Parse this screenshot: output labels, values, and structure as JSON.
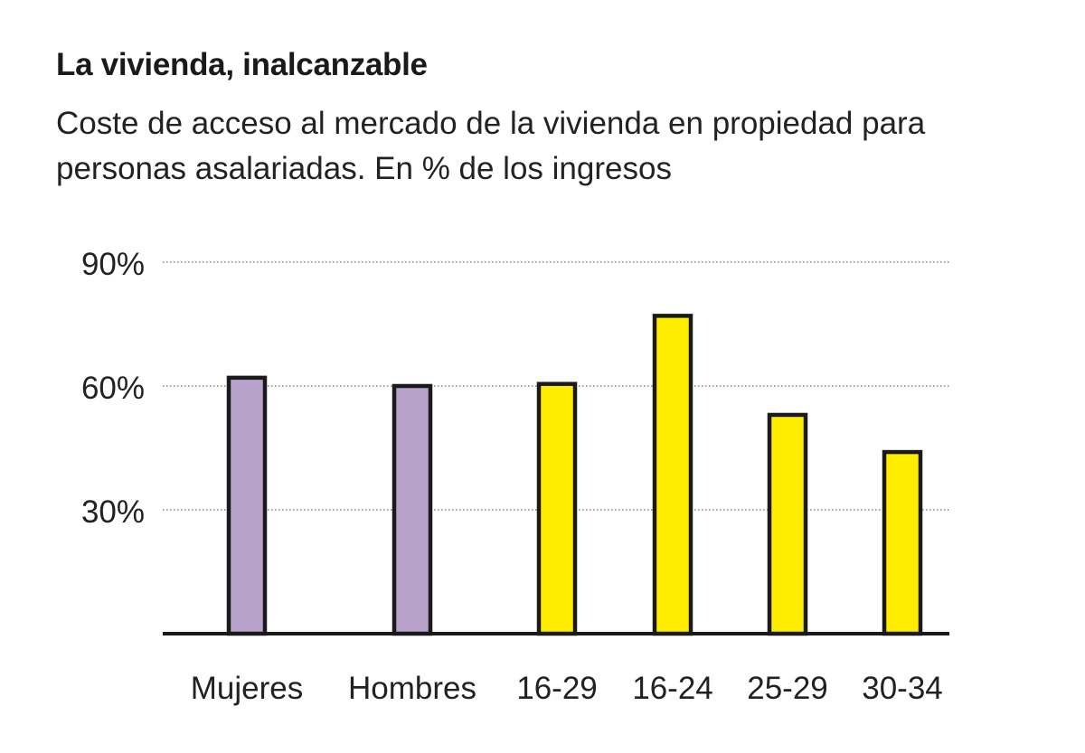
{
  "header": {
    "title": "La vivienda, inalcanzable",
    "subtitle": "Coste de acceso al mercado de la vivienda en propiedad para personas asalariadas. En % de los ingresos"
  },
  "chart_data": {
    "type": "bar",
    "title": "La vivienda, inalcanzable",
    "subtitle": "Coste de acceso al mercado de la vivienda en propiedad para personas asalariadas. En % de los ingresos",
    "xlabel": "",
    "ylabel": "",
    "categories": [
      "Mujeres",
      "Hombres",
      "16-29",
      "16-24",
      "25-29",
      "30-34"
    ],
    "values": [
      62,
      60,
      60.5,
      77,
      53,
      44
    ],
    "colors": [
      "#b7a2cc",
      "#b7a2cc",
      "#ffed00",
      "#ffed00",
      "#ffed00",
      "#ffed00"
    ],
    "bar_outline": "#1a1a1a",
    "ylim": [
      0,
      90
    ],
    "yticks": [
      30,
      60,
      90
    ],
    "ytick_labels": [
      "30%",
      "60%",
      "90%"
    ],
    "grid": "dotted horizontal",
    "legend": "none"
  }
}
